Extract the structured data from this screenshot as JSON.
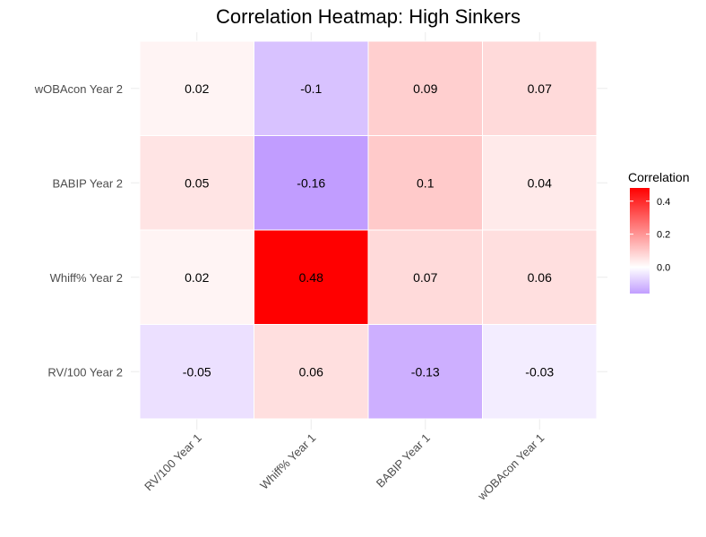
{
  "chart_data": {
    "type": "heatmap",
    "title": "Correlation Heatmap: High Sinkers",
    "x_categories": [
      "RV/100 Year 1",
      "Whiff% Year 1",
      "BABIP Year 1",
      "wOBAcon Year 1"
    ],
    "y_categories": [
      "RV/100 Year 2",
      "Whiff% Year 2",
      "BABIP Year 2",
      "wOBAcon Year 2"
    ],
    "values": [
      [
        -0.05,
        0.06,
        -0.13,
        -0.03
      ],
      [
        0.02,
        0.48,
        0.07,
        0.06
      ],
      [
        0.05,
        -0.16,
        0.1,
        0.04
      ],
      [
        0.02,
        -0.1,
        0.09,
        0.07
      ]
    ],
    "color_scale": {
      "low": "#c19dff",
      "mid": "#ffffff",
      "high": "#ff0000",
      "min": -0.16,
      "mid_value": 0,
      "max": 0.48
    },
    "legend": {
      "title": "Correlation",
      "ticks": [
        0.4,
        0.2,
        0.0
      ],
      "tick_labels": [
        "0.4",
        "0.2",
        "0.0"
      ],
      "placement": "right"
    },
    "grid": true
  }
}
